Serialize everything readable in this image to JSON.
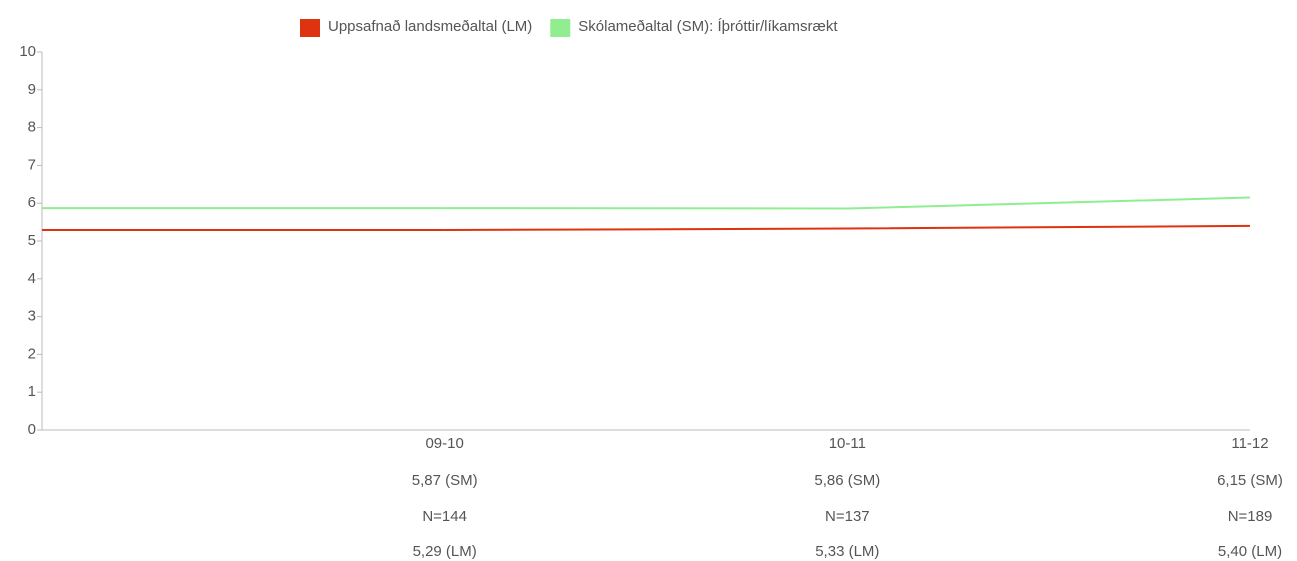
{
  "chart_data": {
    "type": "line",
    "categories": [
      "09-10",
      "10-11",
      "11-12"
    ],
    "series": [
      {
        "name": "Uppsafnað landsmeðaltal (LM)",
        "color": "#dd3311",
        "values": [
          5.29,
          5.33,
          5.4
        ],
        "value_labels": [
          "5,29 (LM)",
          "5,33 (LM)",
          "5,40 (LM)"
        ]
      },
      {
        "name": "Skólameðaltal (SM): Íþróttir/líkamsrækt",
        "color": "#90ee90",
        "values": [
          5.87,
          5.86,
          6.15
        ],
        "value_labels": [
          "5,87 (SM)",
          "5,86 (SM)",
          "6,15 (SM)"
        ]
      }
    ],
    "n_labels": [
      "N=144",
      "N=137",
      "N=189"
    ],
    "ylim": [
      0,
      10
    ],
    "yticks": [
      0,
      1,
      2,
      3,
      4,
      5,
      6,
      7,
      8,
      9,
      10
    ],
    "legend": "top"
  }
}
